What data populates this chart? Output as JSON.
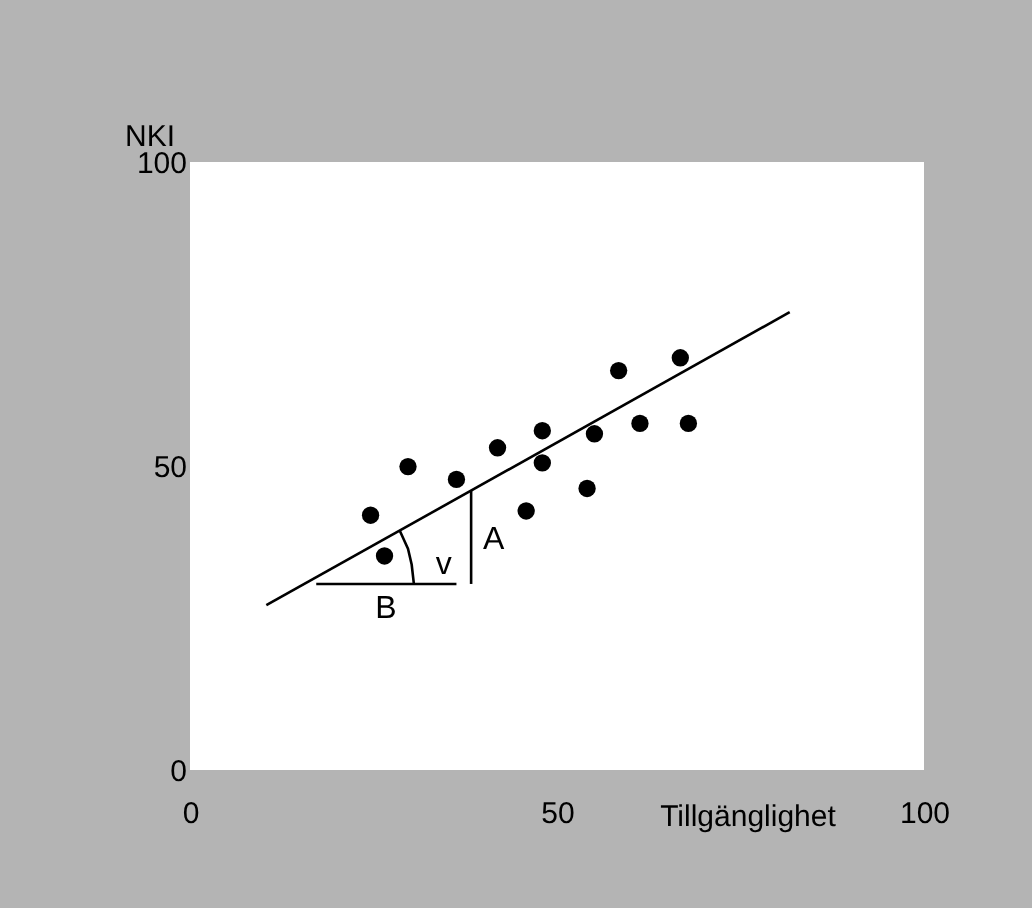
{
  "chart_data": {
    "type": "scatter",
    "ylabel": "NKI",
    "xlabel": "Tillgänglighet",
    "xlim": [
      0,
      100
    ],
    "ylim": [
      0,
      100
    ],
    "xticks": [
      0,
      50,
      100
    ],
    "yticks": [
      0,
      50,
      100
    ],
    "grid": false,
    "marker": "circle",
    "series": [
      {
        "color": "#000000",
        "x": [
          24.6,
          29.7,
          26.5,
          36.3,
          41.9,
          48.0,
          48.0,
          45.8,
          54.1,
          55.1,
          58.4,
          61.3,
          66.8,
          67.9
        ],
        "values": [
          41.9,
          49.9,
          35.2,
          47.8,
          53.0,
          55.8,
          50.5,
          42.6,
          46.3,
          55.3,
          65.7,
          57.0,
          67.8,
          57.0
        ]
      },
      {
        "type": "line",
        "color": "#000000",
        "marker": "none",
        "line_style": "solid",
        "x": [
          10.4,
          81.7
        ],
        "values": [
          27.1,
          75.3
        ]
      },
      {
        "type": "line",
        "color": "#000000",
        "marker": "none",
        "line_style": "solid",
        "x": [
          17.2,
          36.3
        ],
        "values": [
          30.6,
          30.6
        ]
      },
      {
        "type": "line",
        "color": "#000000",
        "marker": "none",
        "line_style": "solid",
        "x": [
          38.3,
          38.3
        ],
        "values": [
          30.6,
          45.9
        ]
      },
      {
        "type": "line",
        "color": "#000000",
        "marker": "none",
        "line_style": "solid",
        "x": [
          30.5,
          30.2,
          29.7,
          28.6
        ],
        "values": [
          30.6,
          33.8,
          36.4,
          39.3
        ]
      }
    ],
    "annotations": [
      {
        "text": "v",
        "x": 30.2,
        "y": 33.8
      },
      {
        "text": "A",
        "x": 38.3,
        "y": 38.0
      },
      {
        "text": "B",
        "x": 26.7,
        "y": 30.6
      }
    ]
  }
}
